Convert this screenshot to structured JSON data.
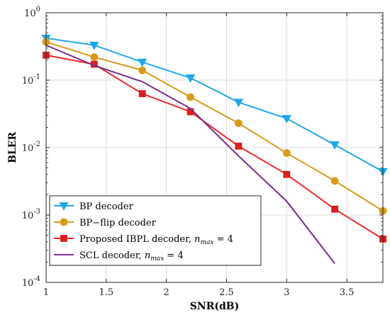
{
  "chart_data": {
    "type": "line",
    "xlabel": "SNR(dB)",
    "ylabel": "BLER",
    "xlim": [
      1,
      3.8
    ],
    "ylim": [
      0.0001,
      1
    ],
    "yscale": "log",
    "grid": true,
    "legend_position": "bottom-left",
    "x_ticks": [
      {
        "value": 1,
        "label": "1"
      },
      {
        "value": 1.5,
        "label": "1.5"
      },
      {
        "value": 2,
        "label": "2"
      },
      {
        "value": 2.5,
        "label": "2.5"
      },
      {
        "value": 3,
        "label": "3"
      },
      {
        "value": 3.5,
        "label": "3.5"
      }
    ],
    "y_ticks": [
      {
        "value": 1,
        "base": "10",
        "exp": "0"
      },
      {
        "value": 0.1,
        "base": "10",
        "exp": "-1"
      },
      {
        "value": 0.01,
        "base": "10",
        "exp": "-2"
      },
      {
        "value": 0.001,
        "base": "10",
        "exp": "-3"
      },
      {
        "value": 0.0001,
        "base": "10",
        "exp": "-4"
      }
    ],
    "series": [
      {
        "name": "BP decoder",
        "name_main": "BP decoder",
        "name_math": "",
        "name_sub": "",
        "name_tail": "",
        "color": "#1fa7e8",
        "marker": "triangle-down",
        "x": [
          1,
          1.4,
          1.8,
          2.2,
          2.6,
          3.0,
          3.4,
          3.8
        ],
        "y": [
          0.42,
          0.33,
          0.185,
          0.108,
          0.047,
          0.027,
          0.011,
          0.0044
        ]
      },
      {
        "name": "BP−flip decoder",
        "name_main": "BP−flip decoder",
        "name_math": "",
        "name_sub": "",
        "name_tail": "",
        "color": "#d99a1a",
        "marker": "circle",
        "x": [
          1,
          1.4,
          1.8,
          2.2,
          2.6,
          3.0,
          3.4,
          3.8
        ],
        "y": [
          0.37,
          0.22,
          0.14,
          0.056,
          0.023,
          0.0083,
          0.0032,
          0.00115
        ]
      },
      {
        "name": "Proposed IBPL decoder, nmax = 4",
        "name_main": "Proposed IBPL decoder, ",
        "name_math": "n",
        "name_sub": "max",
        "name_tail": " = 4",
        "color": "#ee2b2b",
        "line_color": "#ee2b2b",
        "marker_color": "#d91f1f",
        "marker": "square",
        "x": [
          1,
          1.4,
          1.8,
          2.2,
          2.6,
          3.0,
          3.4,
          3.8
        ],
        "y": [
          0.235,
          0.172,
          0.063,
          0.034,
          0.0105,
          0.004,
          0.00122,
          0.00044
        ]
      },
      {
        "name": "SCL decoder, nmax = 4",
        "name_main": "SCL decoder, ",
        "name_math": "n",
        "name_sub": "max",
        "name_tail": " = 4",
        "color": "#7b2d8e",
        "marker": "none",
        "x": [
          1,
          1.4,
          1.8,
          2.2,
          2.6,
          3.0,
          3.4
        ],
        "y": [
          0.33,
          0.165,
          0.095,
          0.038,
          0.0075,
          0.0016,
          0.00019
        ]
      }
    ]
  }
}
